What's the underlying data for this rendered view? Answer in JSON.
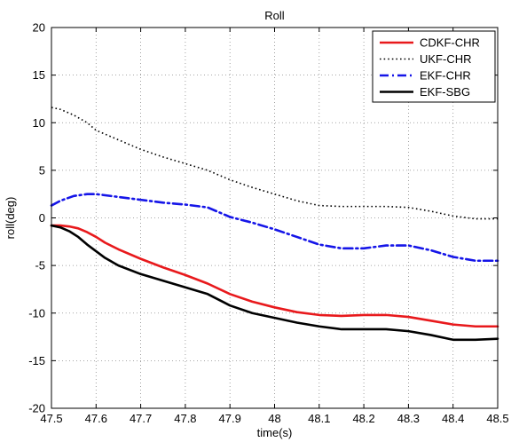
{
  "chart_data": {
    "type": "line",
    "title": "Roll",
    "xlabel": "time(s)",
    "ylabel": "roll(deg)",
    "xlim": [
      47.5,
      48.5
    ],
    "ylim": [
      -20,
      20
    ],
    "xticks": [
      "47.5",
      "47.6",
      "47.7",
      "47.8",
      "47.9",
      "48",
      "48.1",
      "48.2",
      "48.3",
      "48.4",
      "48.5"
    ],
    "yticks": [
      "-20",
      "-15",
      "-10",
      "-5",
      "0",
      "5",
      "10",
      "15",
      "20"
    ],
    "grid": true,
    "legend_position": "top-right",
    "series": [
      {
        "name": "CDKF-CHR",
        "color": "#e8191c",
        "style": "solid",
        "x": [
          47.5,
          47.52,
          47.54,
          47.56,
          47.58,
          47.6,
          47.62,
          47.65,
          47.7,
          47.75,
          47.8,
          47.85,
          47.9,
          47.95,
          48.0,
          48.05,
          48.1,
          48.15,
          48.2,
          48.25,
          48.3,
          48.35,
          48.4,
          48.45,
          48.5
        ],
        "y": [
          -0.8,
          -0.8,
          -0.9,
          -1.1,
          -1.5,
          -2.0,
          -2.6,
          -3.3,
          -4.3,
          -5.2,
          -6.0,
          -6.9,
          -8.0,
          -8.8,
          -9.4,
          -9.9,
          -10.2,
          -10.3,
          -10.2,
          -10.2,
          -10.4,
          -10.8,
          -11.2,
          -11.4,
          -11.4
        ]
      },
      {
        "name": "UKF-CHR",
        "color": "#000000",
        "style": "dotted",
        "x": [
          47.5,
          47.52,
          47.55,
          47.58,
          47.6,
          47.65,
          47.7,
          47.75,
          47.8,
          47.85,
          47.9,
          47.95,
          48.0,
          48.05,
          48.1,
          48.15,
          48.2,
          48.25,
          48.3,
          48.35,
          48.4,
          48.45,
          48.5
        ],
        "y": [
          11.6,
          11.4,
          10.8,
          10.0,
          9.2,
          8.2,
          7.2,
          6.4,
          5.7,
          5.0,
          4.0,
          3.2,
          2.5,
          1.8,
          1.3,
          1.2,
          1.2,
          1.2,
          1.1,
          0.7,
          0.2,
          -0.1,
          -0.1
        ]
      },
      {
        "name": "EKF-CHR",
        "color": "#1515e8",
        "style": "dashdot",
        "x": [
          47.5,
          47.52,
          47.55,
          47.58,
          47.6,
          47.65,
          47.7,
          47.75,
          47.8,
          47.85,
          47.9,
          47.95,
          48.0,
          48.05,
          48.1,
          48.15,
          48.2,
          48.25,
          48.3,
          48.35,
          48.4,
          48.45,
          48.5
        ],
        "y": [
          1.3,
          1.8,
          2.3,
          2.5,
          2.5,
          2.2,
          1.9,
          1.6,
          1.4,
          1.1,
          0.1,
          -0.5,
          -1.2,
          -2.0,
          -2.8,
          -3.2,
          -3.2,
          -2.9,
          -2.9,
          -3.4,
          -4.1,
          -4.5,
          -4.5
        ]
      },
      {
        "name": "EKF-SBG",
        "color": "#000000",
        "style": "solid",
        "x": [
          47.5,
          47.52,
          47.54,
          47.56,
          47.58,
          47.6,
          47.62,
          47.65,
          47.7,
          47.75,
          47.8,
          47.85,
          47.9,
          47.95,
          48.0,
          48.05,
          48.1,
          48.15,
          48.2,
          48.25,
          48.3,
          48.35,
          48.4,
          48.45,
          48.5
        ],
        "y": [
          -0.8,
          -1.0,
          -1.4,
          -2.0,
          -2.8,
          -3.5,
          -4.2,
          -5.0,
          -5.9,
          -6.6,
          -7.3,
          -8.0,
          -9.2,
          -10.0,
          -10.5,
          -11.0,
          -11.4,
          -11.7,
          -11.7,
          -11.7,
          -11.9,
          -12.3,
          -12.8,
          -12.8,
          -12.7
        ]
      }
    ]
  }
}
